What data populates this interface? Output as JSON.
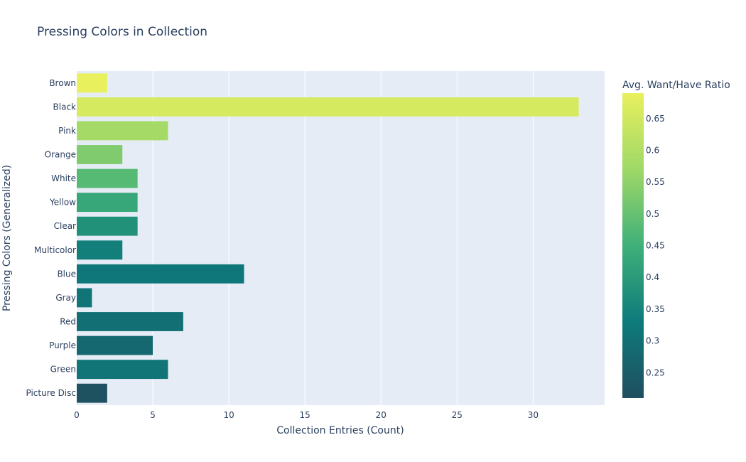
{
  "chart_data": {
    "type": "bar",
    "orientation": "horizontal",
    "title": "Pressing Colors in Collection",
    "xlabel": "Collection Entries (Count)",
    "ylabel": "Pressing Colors (Generalized)",
    "xlim": [
      0,
      34.7
    ],
    "xticks": [
      0,
      5,
      10,
      15,
      20,
      25,
      30
    ],
    "categories": [
      "Brown",
      "Black",
      "Pink",
      "Orange",
      "White",
      "Yellow",
      "Clear",
      "Multicolor",
      "Blue",
      "Gray",
      "Red",
      "Purple",
      "Green",
      "Picture Disc"
    ],
    "values": [
      2,
      33,
      6,
      3,
      4,
      4,
      4,
      3,
      11,
      1,
      7,
      5,
      6,
      2
    ],
    "color_values": [
      0.69,
      0.66,
      0.58,
      0.53,
      0.48,
      0.43,
      0.38,
      0.34,
      0.32,
      0.31,
      0.3,
      0.28,
      0.31,
      0.22
    ],
    "colorbar": {
      "title": "Avg. Want/Have Ratio",
      "range": [
        0.21,
        0.69
      ],
      "ticks": [
        0.25,
        0.3,
        0.35,
        0.4,
        0.45,
        0.5,
        0.55,
        0.6,
        0.65
      ],
      "colorscale": [
        "#1f4e5f",
        "#0e7b7b",
        "#3fb079",
        "#9fd867",
        "#e8f05e"
      ]
    },
    "colors": {
      "plot_bg": "#e5ecf6",
      "grid": "#ffffff",
      "text": "#2a3f5f"
    },
    "grid": true
  }
}
